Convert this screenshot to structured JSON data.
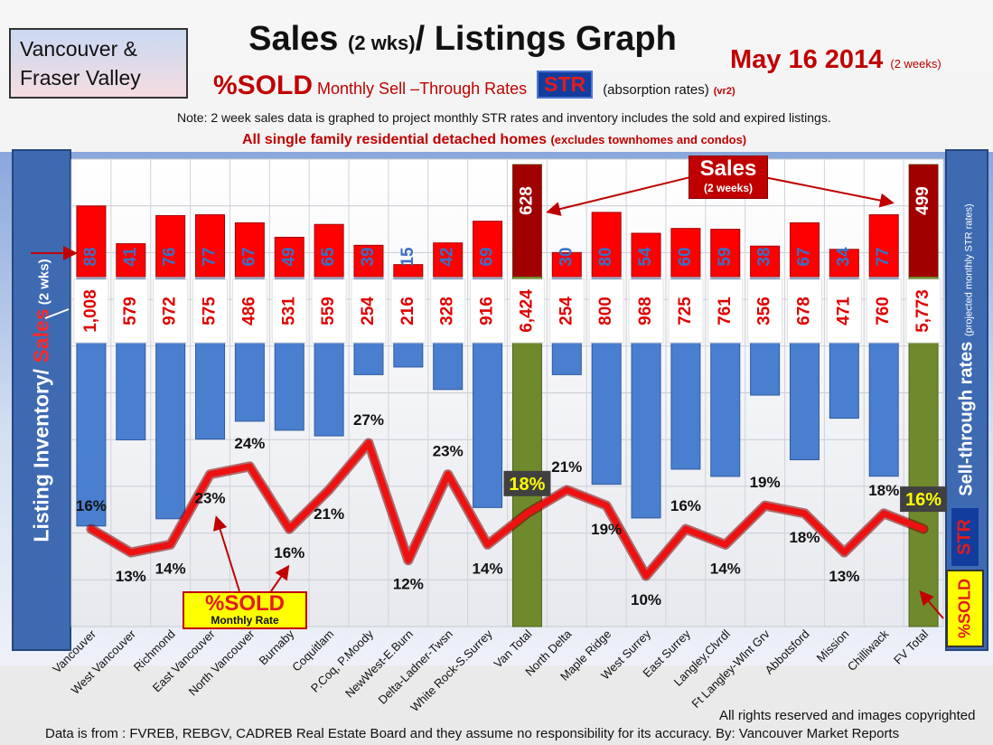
{
  "header": {
    "region": "Vancouver & Fraser Valley",
    "title_main": "Sales ",
    "title_small": "(2 wks)",
    "title_rest": "/ Listings Graph",
    "date": "May 16 2014",
    "date_small": "(2 weeks)",
    "sold_label": "%SOLD",
    "str_caption": "Monthly Sell –Through Rates",
    "str_box": "STR",
    "absorption": "(absorption rates)",
    "version": "(vr2)",
    "note": "Note: 2 week sales data is graphed to project monthly STR rates and inventory includes the sold and expired listings.",
    "note2_main": "All single family residential detached homes ",
    "note2_small": "(excludes townhomes and condos)"
  },
  "side_labels": {
    "left_inventory": "Listing Inventory/ ",
    "left_sales": "Sales",
    "left_small": " (2 wks)",
    "right_str": "Sell-through rates",
    "right_small": "(projected monthly STR rates)",
    "right_str_box": "STR",
    "right_sold": "%SOLD"
  },
  "callouts": {
    "sales_title": "Sales",
    "sales_sub": "(2 weeks)",
    "sold_title": "%SOLD",
    "sold_sub": "Monthly Rate"
  },
  "footer": {
    "rights": "All rights reserved and  images copyrighted",
    "source": "Data is  from : FVREB, REBGV, CADREB Real Estate Board and they assume  no responsibility  for its accuracy.  By: Vancouver Market Reports"
  },
  "colors": {
    "sales_bar": "#ff0000",
    "inventory_bar": "#4a7fd0",
    "total_bar": "#6f8a2c",
    "str_line": "#ee1111",
    "label_bg": "#ffffff",
    "label_text": "#e00000",
    "sales_text": "#3a6fc4"
  },
  "chart_data": {
    "type": "bar",
    "categories": [
      "Vancouver",
      "West Vancouver",
      "Richmond",
      "East Vancouver",
      "North Vancouver",
      "Burnaby",
      "Coquitlam",
      "P.Coq, P.Moody",
      "NewWest-E.Burn",
      "Delta-Ladner-Twsn",
      "White Rock-S.Surrey",
      "Van Total",
      "North Delta",
      "Maple Ridge",
      "West Surrey",
      "East Surrey",
      "Langley,Clvrdl",
      "Ft Langley-Wlnt Grv",
      "Abbotsford",
      "Mission",
      "Chilliwack",
      "FV Total"
    ],
    "series": [
      {
        "name": "Sales",
        "values": [
          88,
          41,
          76,
          77,
          67,
          49,
          65,
          39,
          15,
          42,
          69,
          628,
          30,
          80,
          54,
          60,
          59,
          38,
          67,
          34,
          77,
          499
        ]
      },
      {
        "name": "Listing Inventory",
        "values": [
          1008,
          579,
          972,
          575,
          486,
          531,
          559,
          254,
          216,
          328,
          916,
          6424,
          254,
          800,
          968,
          725,
          761,
          356,
          678,
          471,
          760,
          5773
        ]
      },
      {
        "name": "%SOLD Monthly Rate",
        "values": [
          16,
          13,
          14,
          23,
          24,
          16,
          21,
          27,
          12,
          23,
          14,
          18,
          21,
          19,
          10,
          16,
          14,
          19,
          18,
          13,
          18,
          16
        ]
      }
    ],
    "value_labels": {
      "sales": [
        "88",
        "41",
        "76",
        "77",
        "67",
        "49",
        "65",
        "39",
        "15",
        "42",
        "69",
        "628",
        "30",
        "80",
        "54",
        "60",
        "59",
        "38",
        "67",
        "34",
        "77",
        "499"
      ],
      "inventory": [
        "1,008",
        "579",
        "972",
        "575",
        "486",
        "531",
        "559",
        "254",
        "216",
        "328",
        "916",
        "6,424",
        "254",
        "800",
        "968",
        "725",
        "761",
        "356",
        "678",
        "471",
        "760",
        "5,773"
      ],
      "str": [
        "16%",
        "13%",
        "14%",
        "23%",
        "24%",
        "16%",
        "21%",
        "27%",
        "12%",
        "23%",
        "14%",
        "18%",
        "21%",
        "19%",
        "10%",
        "16%",
        "14%",
        "19%",
        "18%",
        "13%",
        "18%",
        "16%"
      ]
    },
    "totals": [
      "Van Total",
      "FV Total"
    ],
    "grid": true
  }
}
